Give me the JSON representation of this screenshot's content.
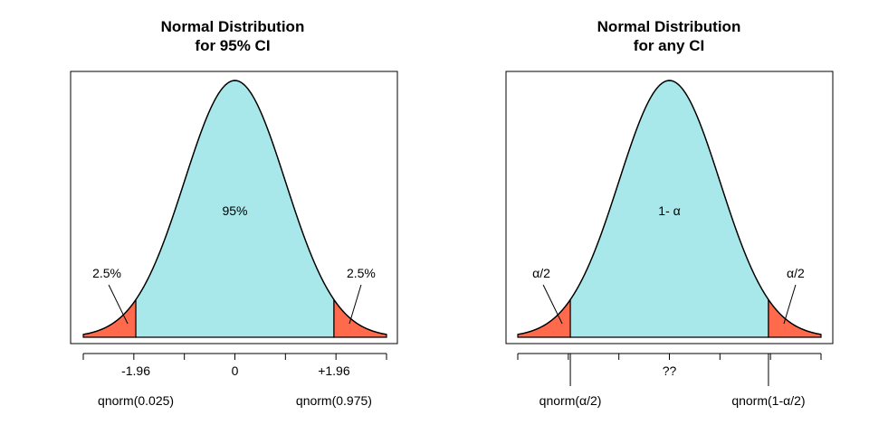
{
  "chart_data": [
    {
      "type": "area",
      "title": [
        "Normal Distribution",
        "for 95% CI"
      ],
      "distribution": "standard normal density",
      "xlim": [
        -3,
        3
      ],
      "grid": false,
      "legend": "none",
      "regions": [
        {
          "name": "left-tail",
          "x": [
            -3,
            -1.96
          ],
          "color": "#FF6A4D"
        },
        {
          "name": "center",
          "x": [
            -1.96,
            1.96
          ],
          "color": "#A8E8EA"
        },
        {
          "name": "right-tail",
          "x": [
            1.96,
            3
          ],
          "color": "#FF6A4D"
        }
      ],
      "labels": {
        "center": "95%",
        "left_tail": "2.5%",
        "right_tail": "2.5%"
      },
      "axis_ticks": [
        -3,
        -2,
        -1,
        0,
        1,
        2,
        3
      ],
      "tick_labels": [
        {
          "x": -1.96,
          "text": "-1.96"
        },
        {
          "x": 0,
          "text": "0"
        },
        {
          "x": 1.96,
          "text": "+1.96"
        }
      ],
      "quantile_lines": false,
      "bottom_labels": {
        "left": "qnorm(0.025)",
        "right": "qnorm(0.975)"
      }
    },
    {
      "type": "area",
      "title": [
        "Normal Distribution",
        "for any CI"
      ],
      "distribution": "standard normal density",
      "xlim": [
        -3,
        3
      ],
      "grid": false,
      "legend": "none",
      "regions": [
        {
          "name": "left-tail",
          "x": [
            -3,
            -1.96
          ],
          "color": "#FF6A4D"
        },
        {
          "name": "center",
          "x": [
            -1.96,
            1.96
          ],
          "color": "#A8E8EA"
        },
        {
          "name": "right-tail",
          "x": [
            1.96,
            3
          ],
          "color": "#FF6A4D"
        }
      ],
      "labels": {
        "center": "1-   α",
        "left_tail": "α/2",
        "right_tail": "α/2"
      },
      "axis_ticks": [
        -3,
        -2,
        -1,
        0,
        1,
        2,
        3
      ],
      "tick_labels": [
        {
          "x": 0,
          "text": "??"
        }
      ],
      "quantile_lines": true,
      "bottom_labels": {
        "left": "qnorm(α/2)",
        "right": "qnorm(1-α/2)"
      }
    }
  ]
}
